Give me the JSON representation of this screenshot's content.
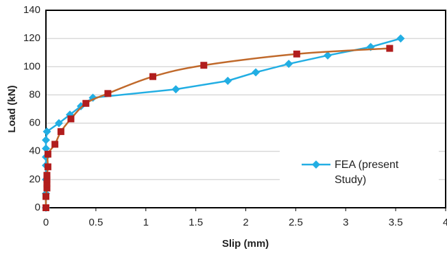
{
  "chart_data": {
    "type": "line",
    "x_label": "Slip (mm)",
    "y_label": "Load (kN)",
    "xlim": [
      0,
      4
    ],
    "xticks": [
      0,
      0.5,
      1,
      1.5,
      2,
      2.5,
      3,
      3.5,
      4
    ],
    "ylim": [
      0,
      140
    ],
    "yticks": [
      0,
      20,
      40,
      60,
      80,
      100,
      120,
      140
    ],
    "grid": true,
    "legend": "lower right",
    "series": [
      {
        "name": "FEA (present Study)",
        "color": "#22aee3",
        "marker": "diamond",
        "legend": true,
        "x": [
          0,
          0,
          0,
          0,
          0,
          0,
          0,
          0.01,
          0.13,
          0.24,
          0.35,
          0.47,
          1.3,
          1.82,
          2.1,
          2.43,
          2.82,
          3.25,
          3.55
        ],
        "values": [
          0,
          10,
          20,
          30,
          36,
          42,
          48,
          54,
          60,
          66,
          72,
          78,
          84,
          90,
          96,
          102,
          108,
          114,
          120
        ]
      },
      {
        "color": "#b11d1d",
        "line_color": "#c0692b",
        "marker": "square",
        "legend": false,
        "x": [
          0,
          0,
          0.01,
          0.01,
          0.01,
          0.01,
          0.02,
          0.02,
          0.09,
          0.15,
          0.25,
          0.4,
          0.62,
          1.07,
          1.58,
          2.51,
          3.44
        ],
        "values": [
          0,
          8,
          14,
          17,
          20,
          23,
          29,
          38,
          45,
          54,
          63,
          74,
          81,
          93,
          101,
          109,
          113
        ]
      }
    ]
  }
}
